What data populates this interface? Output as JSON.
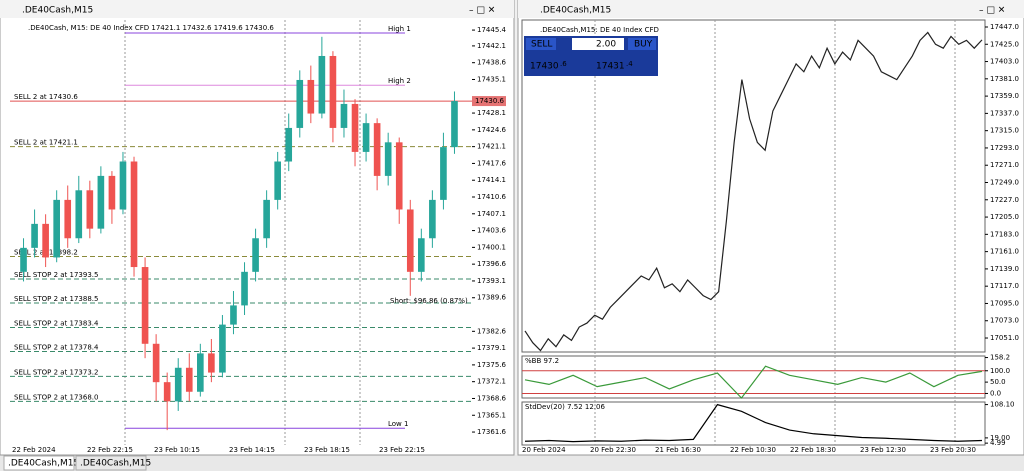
{
  "tabs": [
    ".DE40Cash,M15",
    ".DE40Cash,M15"
  ],
  "left": {
    "title": ".DE40Cash,M15",
    "info": ".DE40Cash, M15:  DE 40 Index CFD  17421.1 17432.6 17419.6 17430.6",
    "ylim": [
      17358.9,
      17447.5
    ],
    "yticks": [
      17445.4,
      17442.1,
      17438.6,
      17435.1,
      17428.1,
      17424.6,
      17421.1,
      17417.6,
      17414.1,
      17410.6,
      17407.1,
      17403.6,
      17400.1,
      17396.6,
      17393.1,
      17389.6,
      17382.6,
      17379.1,
      17375.6,
      17372.1,
      17368.6,
      17365.1,
      17361.6
    ],
    "xlabels": [
      "22 Feb 2024",
      "22 Feb 22:15",
      "23 Feb 10:15",
      "23 Feb 14:15",
      "23 Feb 18:15",
      "23 Feb 22:15"
    ],
    "orders": [
      {
        "label": "SELL 2 at 17430.6",
        "value": 17430.6
      },
      {
        "label": "SELL 2 at 17421.1",
        "value": 17421.1
      },
      {
        "label": "SELL 2 at 17398.2",
        "value": 17398.2
      },
      {
        "label": "SELL STOP 2 at 17393.5",
        "value": 17393.5
      },
      {
        "label": "SELL STOP 2 at 17388.5",
        "value": 17388.5
      },
      {
        "label": "SELL STOP 2 at 17383.4",
        "value": 17383.4
      },
      {
        "label": "SELL STOP 2 at 17378.4",
        "value": 17378.4
      },
      {
        "label": "SELL STOP 2 at 17373.2",
        "value": 17373.2
      },
      {
        "label": "SELL STOP 2 at 17368.0",
        "value": 17368.0
      }
    ],
    "levels": [
      {
        "label": "High 1",
        "value": 17444.8
      },
      {
        "label": "High 2",
        "value": 17433.9
      },
      {
        "label": "Low 1",
        "value": 17362.4
      }
    ],
    "current_price": 17430.6,
    "short_label": "Short: $96.86 (0.87%)",
    "candles": {
      "open": [
        17395,
        17400,
        17405,
        17398,
        17410,
        17402,
        17412,
        17404,
        17415,
        17408,
        17418,
        17396,
        17380,
        17372,
        17368,
        17375,
        17370,
        17378,
        17374,
        17384,
        17388,
        17395,
        17402,
        17410,
        17418,
        17425,
        17435,
        17428,
        17440,
        17425,
        17430,
        17420,
        17426,
        17415,
        17422,
        17408,
        17395,
        17402,
        17410,
        17421
      ],
      "high": [
        17402,
        17408,
        17407,
        17412,
        17413,
        17415,
        17414,
        17417,
        17416,
        17420,
        17419,
        17398,
        17382,
        17374,
        17377,
        17378,
        17380,
        17381,
        17386,
        17391,
        17397,
        17404,
        17412,
        17420,
        17428,
        17437,
        17438,
        17444,
        17441,
        17433,
        17431,
        17428,
        17427,
        17424,
        17423,
        17410,
        17404,
        17412,
        17424,
        17432.6
      ],
      "low": [
        17393,
        17398,
        17396,
        17397,
        17400,
        17401,
        17402,
        17403,
        17405,
        17407,
        17394,
        17377,
        17368,
        17362,
        17366,
        17368,
        17369,
        17372,
        17373,
        17382,
        17386,
        17393,
        17400,
        17408,
        17416,
        17423,
        17426,
        17427,
        17422,
        17423,
        17417,
        17418,
        17412,
        17413,
        17405,
        17390,
        17393,
        17400,
        17408,
        17419.6
      ],
      "close": [
        17400,
        17405,
        17398,
        17410,
        17402,
        17412,
        17404,
        17415,
        17408,
        17418,
        17396,
        17380,
        17372,
        17368,
        17375,
        17370,
        17378,
        17374,
        17384,
        17388,
        17395,
        17402,
        17410,
        17418,
        17425,
        17435,
        17428,
        17440,
        17425,
        17430,
        17420,
        17426,
        17415,
        17422,
        17408,
        17395,
        17402,
        17410,
        17421,
        17430.6
      ]
    }
  },
  "right": {
    "title": ".DE40Cash,M15",
    "info": ".DE40Cash,M15:  DE 40 Index CFD",
    "trade": {
      "sell": "SELL",
      "buy": "BUY",
      "volume": "2.00",
      "bid_main": "17430",
      "bid_fraction": ".6",
      "ask_main": "17431",
      "ask_fraction": ".4"
    },
    "ylim": [
      17033.2,
      17455.9
    ],
    "yticks": [
      {
        "value": 17447,
        "label": "17447.0"
      },
      {
        "value": 17425,
        "label": "17425.0"
      },
      {
        "value": 17403,
        "label": "17403.0"
      },
      {
        "value": 17381,
        "label": "17381.0"
      },
      {
        "value": 17359,
        "label": "17359.0"
      },
      {
        "value": 17337,
        "label": "17337.0"
      },
      {
        "value": 17315,
        "label": "17315.0"
      },
      {
        "value": 17293,
        "label": "17293.0"
      },
      {
        "value": 17271,
        "label": "17271.0"
      },
      {
        "value": 17249,
        "label": "17249.0"
      },
      {
        "value": 17227,
        "label": "17227.0"
      },
      {
        "value": 17205,
        "label": "17205.0"
      },
      {
        "value": 17183,
        "label": "17183.0"
      },
      {
        "value": 17161,
        "label": "17161.0"
      },
      {
        "value": 17139,
        "label": "17139.0"
      },
      {
        "value": 17117,
        "label": "17117.0"
      },
      {
        "value": 17095,
        "label": "17095.0"
      },
      {
        "value": 17073,
        "label": "17073.0"
      },
      {
        "value": 17051,
        "label": "17051.0"
      }
    ],
    "xlabels": [
      "20 Feb 2024",
      "20 Feb 22:30",
      "21 Feb 16:30",
      "22 Feb 10:30",
      "22 Feb 18:30",
      "23 Feb 12:30",
      "23 Feb 20:30"
    ],
    "close": [
      17060,
      17045,
      17035,
      17050,
      17040,
      17055,
      17048,
      17065,
      17070,
      17080,
      17075,
      17090,
      17100,
      17110,
      17120,
      17130,
      17125,
      17140,
      17115,
      17120,
      17110,
      17125,
      17115,
      17105,
      17100,
      17110,
      17200,
      17300,
      17380,
      17330,
      17300,
      17290,
      17340,
      17360,
      17380,
      17400,
      17390,
      17410,
      17395,
      17420,
      17400,
      17415,
      17405,
      17430,
      17420,
      17410,
      17390,
      17385,
      17380,
      17395,
      17410,
      17430,
      17440,
      17425,
      17420,
      17435,
      17425,
      17430,
      17420,
      17430.6
    ],
    "bb": {
      "label": "%BB 97.2",
      "ylim": [
        -20,
        165
      ],
      "yticks": [
        {
          "value": 158.2,
          "label": "158.2"
        },
        {
          "value": 100,
          "label": "100.0"
        },
        {
          "value": 50,
          "label": "50.0"
        },
        {
          "value": 0,
          "label": "0.0"
        }
      ],
      "values": [
        60,
        40,
        80,
        30,
        50,
        70,
        20,
        60,
        90,
        -20,
        120,
        80,
        60,
        40,
        70,
        50,
        90,
        30,
        80,
        97.2
      ]
    },
    "std": {
      "label": "StdDev(20) 7.52 12.06",
      "ylim": [
        0,
        115
      ],
      "yticks": [
        {
          "value": 108.1,
          "label": "108.10"
        },
        {
          "value": 19,
          "label": "19.00"
        },
        {
          "value": 4.99,
          "label": "4.99"
        }
      ],
      "values": [
        10,
        12,
        9,
        11,
        10,
        13,
        12,
        15,
        108,
        90,
        60,
        40,
        30,
        25,
        20,
        18,
        15,
        12,
        10,
        12.06
      ]
    }
  }
}
